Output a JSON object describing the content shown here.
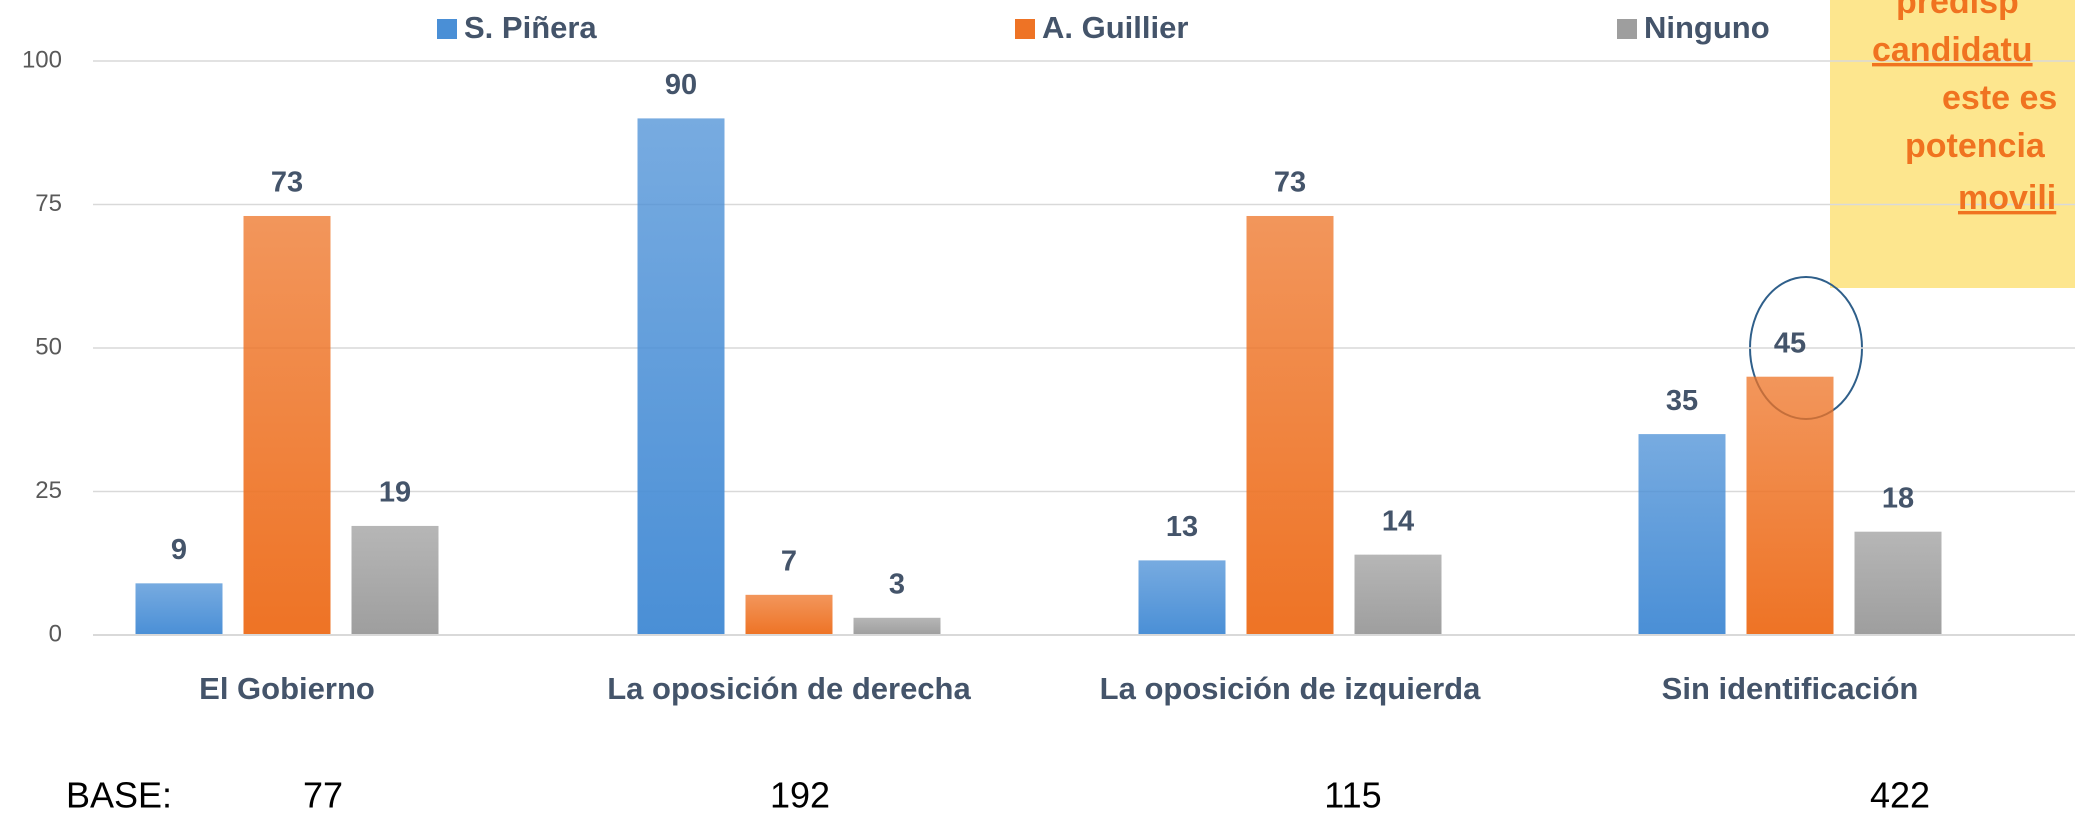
{
  "chart_data": {
    "type": "bar",
    "categories": [
      "El Gobierno",
      "La oposición de derecha",
      "La oposición de izquierda",
      "Sin identificación"
    ],
    "series": [
      {
        "name": "S. Piñera",
        "color": "#4a8fd6",
        "values": [
          9,
          90,
          13,
          35
        ]
      },
      {
        "name": "A. Guillier",
        "color": "#ee7325",
        "values": [
          73,
          7,
          73,
          45
        ]
      },
      {
        "name": "Ninguno",
        "color": "#9e9e9e",
        "values": [
          19,
          3,
          14,
          18
        ]
      }
    ],
    "ylim": [
      0,
      100
    ],
    "yticks": [
      0,
      25,
      50,
      75,
      100
    ],
    "grid": true,
    "base_label": "BASE:",
    "base_values": [
      77,
      192,
      115,
      422
    ],
    "annotation": [
      "predisp",
      "candidatu",
      "este es",
      "potencia",
      "movili"
    ]
  }
}
